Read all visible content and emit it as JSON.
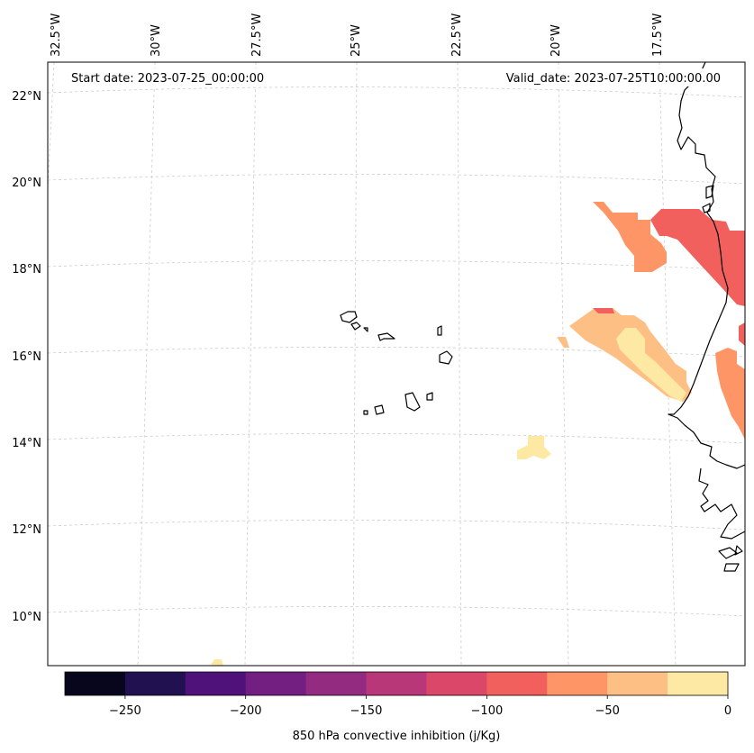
{
  "header": {
    "start_date": "Start date: 2023-07-25_00:00:00",
    "valid_date": "Valid_date: 2023-07-25T10:00:00.00"
  },
  "longitude_labels": [
    "32.5°W",
    "30°W",
    "27.5°W",
    "25°W",
    "22.5°W",
    "20°W",
    "17.5°W"
  ],
  "latitude_labels": [
    "22°N",
    "20°N",
    "18°N",
    "16°N",
    "14°N",
    "12°N",
    "10°N"
  ],
  "colorbar": {
    "label": "850 hPa convective inhibition (j/Kg)",
    "ticks": [
      "−250",
      "−200",
      "−150",
      "−100",
      "−50",
      "0"
    ],
    "colors": [
      "#07061c",
      "#221150",
      "#4f127b",
      "#721f81",
      "#932b80",
      "#b73779",
      "#da4769",
      "#f1605d",
      "#fd9567",
      "#febf84",
      "#fde9a4"
    ]
  },
  "colors": {
    "cin_-100_-75": "#f1605d",
    "cin_-75_-50": "#fd9567",
    "cin_-50_-25": "#febf84",
    "cin_-25_0": "#fde9a4",
    "coastline": "#000000",
    "gridline": "#cccccc"
  }
}
